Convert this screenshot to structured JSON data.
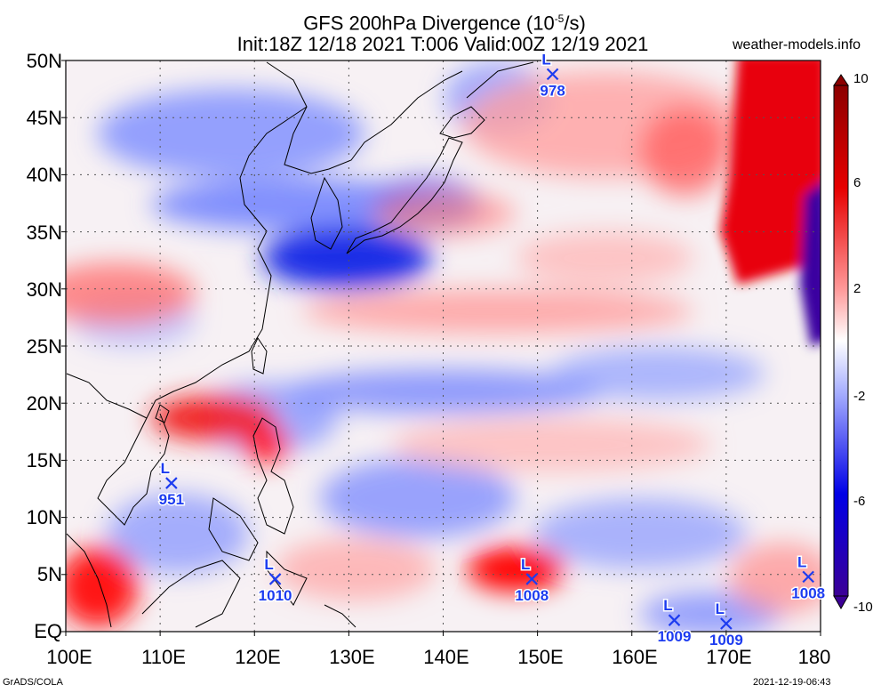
{
  "title": {
    "line1_pre": "GFS 200hPa Divergence (10",
    "line1_exp": "-5",
    "line1_post": "/s)",
    "line2": "Init:18Z 12/18 2021 T:006 Valid:00Z 12/19 2021"
  },
  "site": "weather-models.info",
  "footer": {
    "left": "GrADS/COLA",
    "right": "2021-12-19-06:43"
  },
  "axes": {
    "lat_labels": [
      "50N",
      "45N",
      "40N",
      "35N",
      "30N",
      "25N",
      "20N",
      "15N",
      "10N",
      "5N",
      "EQ"
    ],
    "lon_labels": [
      "100E",
      "110E",
      "120E",
      "130E",
      "140E",
      "150E",
      "160E",
      "170E",
      "180"
    ],
    "lat_range": [
      0,
      50
    ],
    "lon_range": [
      100,
      180
    ]
  },
  "colorbar": {
    "labels": [
      "10",
      "6",
      "2",
      "-2",
      "-6",
      "-10"
    ],
    "range": [
      -10,
      10
    ],
    "colors_top_to_bottom": [
      "#8b0000",
      "#e60000",
      "#ff6a6a",
      "#ffd0d0",
      "#ffffff",
      "#d0d6ff",
      "#6a6aff",
      "#0000e6",
      "#3c0096"
    ]
  },
  "lows": [
    {
      "mark": "L",
      "value": "978",
      "lon": 151.6,
      "lat": 48.8
    },
    {
      "mark": "L",
      "value": "951",
      "lon": 111.2,
      "lat": 13.0
    },
    {
      "mark": "L",
      "value": "1010",
      "lon": 122.2,
      "lat": 4.6
    },
    {
      "mark": "L",
      "value": "1008",
      "lon": 149.4,
      "lat": 4.6
    },
    {
      "mark": "L",
      "value": "1009",
      "lon": 164.5,
      "lat": 1.0
    },
    {
      "mark": "L",
      "value": "1009",
      "lon": 170.0,
      "lat": 0.7
    },
    {
      "mark": "L",
      "value": "1008",
      "lon": 178.7,
      "lat": 4.8
    }
  ],
  "colors": {
    "low_marker": "#1d3cf0",
    "divergence": "#e60000",
    "convergence": "#0000e6",
    "coastline": "#000000"
  }
}
